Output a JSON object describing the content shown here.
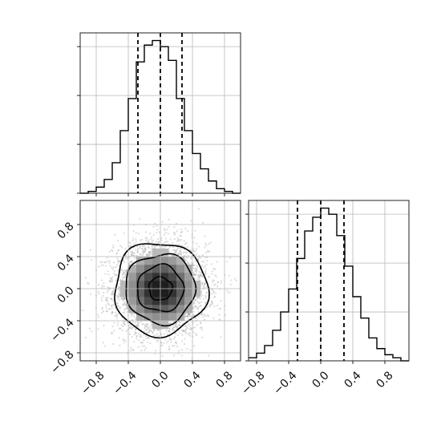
{
  "chart_data": {
    "type": "corner",
    "title": "",
    "grid": true,
    "panels": {
      "hist_x": {
        "type": "histogram",
        "xlim": [
          -1.0,
          1.0
        ],
        "bin_edges": [
          -1.0,
          -0.9,
          -0.8,
          -0.7,
          -0.6,
          -0.5,
          -0.4,
          -0.3,
          -0.2,
          -0.1,
          0.0,
          0.1,
          0.2,
          0.3,
          0.4,
          0.5,
          0.6,
          0.7,
          0.8,
          0.9,
          1.0
        ],
        "counts": [
          0.0,
          0.012,
          0.04,
          0.09,
          0.2,
          0.41,
          0.62,
          0.86,
          0.97,
          1.0,
          0.96,
          0.87,
          0.62,
          0.41,
          0.26,
          0.16,
          0.08,
          0.03,
          0.012,
          0.0
        ],
        "quantiles": [
          -0.28,
          0.0,
          0.27
        ]
      },
      "hist_y": {
        "type": "histogram",
        "xlim": [
          -0.9,
          1.1
        ],
        "bin_edges": [
          -0.9,
          -0.8,
          -0.7,
          -0.6,
          -0.5,
          -0.4,
          -0.3,
          -0.2,
          -0.1,
          0.0,
          0.1,
          0.2,
          0.3,
          0.4,
          0.5,
          0.6,
          0.7,
          0.8,
          0.9,
          1.0,
          1.1
        ],
        "counts": [
          0.02,
          0.05,
          0.1,
          0.2,
          0.32,
          0.47,
          0.67,
          0.85,
          0.94,
          1.0,
          0.96,
          0.82,
          0.62,
          0.42,
          0.28,
          0.15,
          0.08,
          0.04,
          0.02,
          0.0
        ],
        "quantiles": [
          -0.29,
          0.0,
          0.29
        ]
      },
      "joint": {
        "type": "scatter-density-contour",
        "xlim": [
          -1.0,
          1.0
        ],
        "ylim": [
          -0.9,
          1.1
        ],
        "n_points": 4000,
        "center": [
          0.0,
          0.0
        ],
        "sigma": [
          0.29,
          0.29
        ],
        "contour_levels_sigma": [
          0.5,
          1.0,
          1.5,
          2.0
        ]
      }
    },
    "x_ticks": [
      "−0.8",
      "−0.4",
      "0.0",
      "0.4",
      "0.8"
    ],
    "x_tick_values": [
      -0.8,
      -0.4,
      0.0,
      0.4,
      0.8
    ],
    "y_ticks": [
      "−0.8",
      "−0.4",
      "0.0",
      "0.4",
      "0.8"
    ],
    "y_tick_values": [
      -0.8,
      -0.4,
      0.0,
      0.4,
      0.8
    ],
    "hist_y_ticks": [
      "−0.8",
      "−0.4",
      "0.0",
      "0.4",
      "0.8"
    ],
    "hist_y_tick_values": [
      -0.8,
      -0.4,
      0.0,
      0.4,
      0.8
    ],
    "colors": {
      "line": "#000000",
      "scatter": "#9a9a9a",
      "grid": "#b8b8b8"
    }
  }
}
